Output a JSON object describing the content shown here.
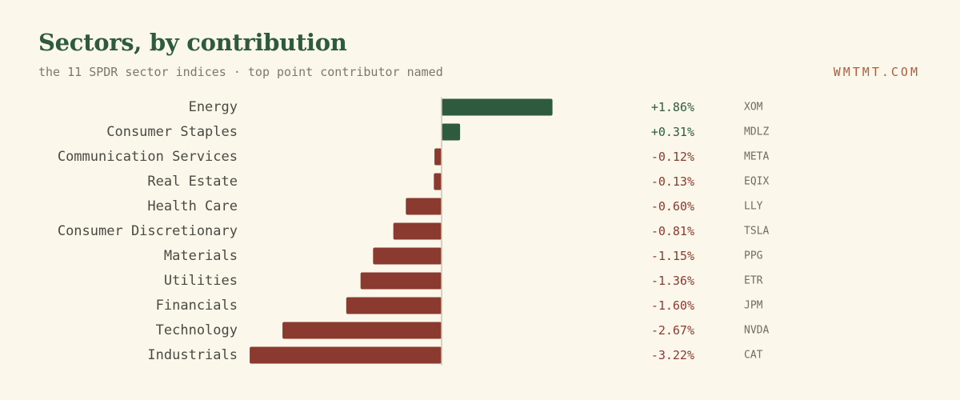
{
  "header": {
    "title": "Sectors, by contribution",
    "subtitle": "the 11 SPDR sector indices · top point contributor named",
    "brand": "WMTMT.COM"
  },
  "colors": {
    "positive": "#2e5a3e",
    "negative": "#8b3a30",
    "axis": "#c9c5b6"
  },
  "chart_data": {
    "type": "bar",
    "orientation": "horizontal",
    "categories": [
      "Energy",
      "Consumer Staples",
      "Communication Services",
      "Real Estate",
      "Health Care",
      "Consumer Discretionary",
      "Materials",
      "Utilities",
      "Financials",
      "Technology",
      "Industrials"
    ],
    "values": [
      1.86,
      0.31,
      -0.12,
      -0.13,
      -0.6,
      -0.81,
      -1.15,
      -1.36,
      -1.6,
      -2.67,
      -3.22
    ],
    "value_labels": [
      "+1.86%",
      "+0.31%",
      "-0.12%",
      "-0.13%",
      "-0.60%",
      "-0.81%",
      "-1.15%",
      "-1.36%",
      "-1.60%",
      "-2.67%",
      "-3.22%"
    ],
    "top_contributors": [
      "XOM",
      "MDLZ",
      "META",
      "EQIX",
      "LLY",
      "TSLA",
      "PPG",
      "ETR",
      "JPM",
      "NVDA",
      "CAT"
    ],
    "unit": "%",
    "xlim": [
      -3.22,
      1.86
    ],
    "grid": false,
    "legend": "none"
  }
}
